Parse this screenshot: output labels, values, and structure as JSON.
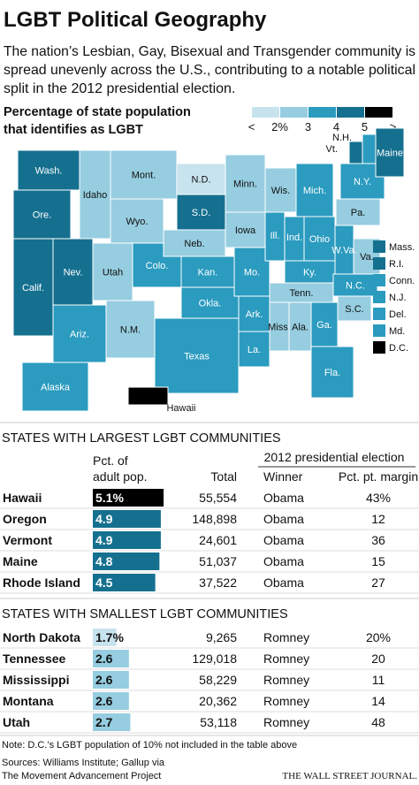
{
  "header": {
    "title": "LGBT Political Geography",
    "subtitle_lines": [
      "The nation’s Lesbian, Gay, Bisexual and Transgender community is",
      "spread unevenly across the U.S., contributing to a notable political",
      "split in the 2012 presidential election."
    ]
  },
  "map": {
    "heading_lines": [
      "Percentage of state population",
      "that identifies as LGBT"
    ],
    "legend": {
      "colors": [
        "#c7e3ee",
        "#96cde0",
        "#2b9bbf",
        "#15708f",
        "#000000"
      ],
      "labels": [
        "<",
        "2%",
        "3",
        "4",
        "5",
        ">"
      ]
    },
    "states": [
      {
        "label": "Wash.",
        "color": "#15708f"
      },
      {
        "label": "Ore.",
        "color": "#15708f"
      },
      {
        "label": "Calif.",
        "color": "#15708f"
      },
      {
        "label": "Nev.",
        "color": "#15708f"
      },
      {
        "label": "Idaho",
        "color": "#96cde0"
      },
      {
        "label": "Mont.",
        "color": "#96cde0"
      },
      {
        "label": "Wyo.",
        "color": "#96cde0"
      },
      {
        "label": "Utah",
        "color": "#96cde0"
      },
      {
        "label": "Colo.",
        "color": "#2b9bbf"
      },
      {
        "label": "Ariz.",
        "color": "#2b9bbf"
      },
      {
        "label": "N.M.",
        "color": "#96cde0"
      },
      {
        "label": "N.D.",
        "color": "#c7e3ee"
      },
      {
        "label": "S.D.",
        "color": "#15708f"
      },
      {
        "label": "Neb.",
        "color": "#96cde0"
      },
      {
        "label": "Kan.",
        "color": "#2b9bbf"
      },
      {
        "label": "Okla.",
        "color": "#2b9bbf"
      },
      {
        "label": "Texas",
        "color": "#2b9bbf"
      },
      {
        "label": "Minn.",
        "color": "#96cde0"
      },
      {
        "label": "Iowa",
        "color": "#96cde0"
      },
      {
        "label": "Mo.",
        "color": "#2b9bbf"
      },
      {
        "label": "Ark.",
        "color": "#2b9bbf"
      },
      {
        "label": "La.",
        "color": "#2b9bbf"
      },
      {
        "label": "Wis.",
        "color": "#96cde0"
      },
      {
        "label": "Ill.",
        "color": "#2b9bbf"
      },
      {
        "label": "Ind.",
        "color": "#2b9bbf"
      },
      {
        "label": "Mich.",
        "color": "#2b9bbf"
      },
      {
        "label": "Ohio",
        "color": "#2b9bbf"
      },
      {
        "label": "Ky.",
        "color": "#2b9bbf"
      },
      {
        "label": "Tenn.",
        "color": "#96cde0"
      },
      {
        "label": "Miss.",
        "color": "#96cde0"
      },
      {
        "label": "Ala.",
        "color": "#96cde0"
      },
      {
        "label": "Ga.",
        "color": "#2b9bbf"
      },
      {
        "label": "Fla.",
        "color": "#2b9bbf"
      },
      {
        "label": "S.C.",
        "color": "#96cde0"
      },
      {
        "label": "N.C.",
        "color": "#2b9bbf"
      },
      {
        "label": "Va.",
        "color": "#96cde0"
      },
      {
        "label": "W.Va.",
        "color": "#2b9bbf"
      },
      {
        "label": "Pa.",
        "color": "#96cde0"
      },
      {
        "label": "N.Y.",
        "color": "#2b9bbf"
      },
      {
        "label": "Vt.",
        "color": "#15708f"
      },
      {
        "label": "N.H.",
        "color": "#2b9bbf"
      },
      {
        "label": "Maine",
        "color": "#15708f"
      },
      {
        "label": "Alaska",
        "color": "#2b9bbf"
      },
      {
        "label": "Hawaii",
        "color": "#000000"
      }
    ],
    "small_states": [
      {
        "label": "Mass.",
        "color": "#15708f"
      },
      {
        "label": "R.I.",
        "color": "#15708f"
      },
      {
        "label": "Conn.",
        "color": "#2b9bbf"
      },
      {
        "label": "N.J.",
        "color": "#2b9bbf"
      },
      {
        "label": "Del.",
        "color": "#2b9bbf"
      },
      {
        "label": "Md.",
        "color": "#2b9bbf"
      },
      {
        "label": "D.C.",
        "color": "#000000"
      }
    ]
  },
  "largest": {
    "heading": "STATES WITH LARGEST LGBT COMMUNITIES",
    "columns": {
      "pct": [
        "Pct. of",
        "adult pop."
      ],
      "total": "Total",
      "election": "2012 presidential election",
      "winner": "Winner",
      "margin": "Pct. pt. margin"
    },
    "rows": [
      {
        "state": "Hawaii",
        "pct": 5.1,
        "pct_label": "5.1%",
        "color": "#000000",
        "total": "55,554",
        "winner": "Obama",
        "margin": "43%"
      },
      {
        "state": "Oregon",
        "pct": 4.9,
        "pct_label": "4.9",
        "color": "#15708f",
        "total": "148,898",
        "winner": "Obama",
        "margin": "12"
      },
      {
        "state": "Vermont",
        "pct": 4.9,
        "pct_label": "4.9",
        "color": "#15708f",
        "total": "24,601",
        "winner": "Obama",
        "margin": "36"
      },
      {
        "state": "Maine",
        "pct": 4.8,
        "pct_label": "4.8",
        "color": "#15708f",
        "total": "51,037",
        "winner": "Obama",
        "margin": "15"
      },
      {
        "state": "Rhode Island",
        "pct": 4.5,
        "pct_label": "4.5",
        "color": "#15708f",
        "total": "37,522",
        "winner": "Obama",
        "margin": "27"
      }
    ]
  },
  "smallest": {
    "heading": "STATES WITH SMALLEST LGBT COMMUNITIES",
    "rows": [
      {
        "state": "North Dakota",
        "pct": 1.7,
        "pct_label": "1.7%",
        "color": "#c7e3ee",
        "total": "9,265",
        "winner": "Romney",
        "margin": "20%"
      },
      {
        "state": "Tennessee",
        "pct": 2.6,
        "pct_label": "2.6",
        "color": "#96cde0",
        "total": "129,018",
        "winner": "Romney",
        "margin": "20"
      },
      {
        "state": "Mississippi",
        "pct": 2.6,
        "pct_label": "2.6",
        "color": "#96cde0",
        "total": "58,229",
        "winner": "Romney",
        "margin": "11"
      },
      {
        "state": "Montana",
        "pct": 2.6,
        "pct_label": "2.6",
        "color": "#96cde0",
        "total": "20,362",
        "winner": "Romney",
        "margin": "14"
      },
      {
        "state": "Utah",
        "pct": 2.7,
        "pct_label": "2.7",
        "color": "#96cde0",
        "total": "53,118",
        "winner": "Romney",
        "margin": "48"
      }
    ]
  },
  "note": "Note: D.C.’s LGBT population of 10% not included in the table above",
  "sources": [
    "Sources: Williams Institute; Gallup via",
    "The Movement Advancement Project"
  ],
  "credit": "THE WALL STREET JOURNAL."
}
